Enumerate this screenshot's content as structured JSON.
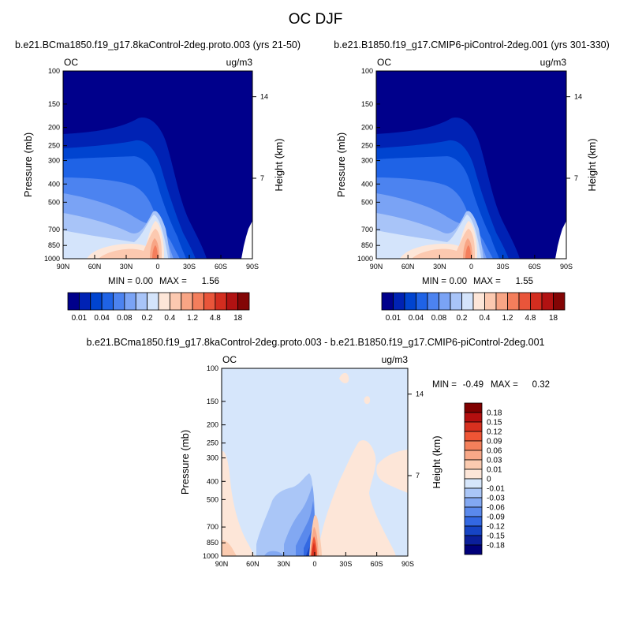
{
  "figure": {
    "title": "OC DJF"
  },
  "chart_data": [
    {
      "type": "heatmap",
      "panel": "left",
      "title": "b.e21.BCma1850.f19_g17.8kaControl-2deg.proto.003 (yrs 21-50)",
      "left_label": "OC",
      "right_label": "ug/m3",
      "xlabel": "",
      "ylabel": "Pressure (mb)",
      "ylabel_right": "Height (km)",
      "x_ticks": [
        "90N",
        "60N",
        "30N",
        "0",
        "30S",
        "60S",
        "90S"
      ],
      "y_ticks": [
        "100",
        "150",
        "200",
        "250",
        "300",
        "400",
        "500",
        "700",
        "850",
        "1000"
      ],
      "y_right_ticks": [
        "14",
        "7"
      ],
      "min_label": "MIN =",
      "min_value": "0.00",
      "max_label": "MAX =",
      "max_value": "1.56",
      "colors": [
        "#00008b",
        "#0022b4",
        "#0044d0",
        "#1f63e6",
        "#4c83f0",
        "#7aa3f5",
        "#a8c4f8",
        "#d4e4fb",
        "#fde6d8",
        "#fcc9b0",
        "#f8a585",
        "#f47e5c",
        "#e9553a",
        "#d32d1f",
        "#b11212",
        "#830505"
      ],
      "colorbar_labels": [
        "0.01",
        "0.04",
        "0.08",
        "0.2",
        "0.4",
        "1.2",
        "4.8",
        "18"
      ]
    },
    {
      "type": "heatmap",
      "panel": "right",
      "title": "b.e21.B1850.f19_g17.CMIP6-piControl-2deg.001 (yrs 301-330)",
      "left_label": "OC",
      "right_label": "ug/m3",
      "xlabel": "",
      "ylabel": "Pressure (mb)",
      "ylabel_right": "Height (km)",
      "x_ticks": [
        "90N",
        "60N",
        "30N",
        "0",
        "30S",
        "60S",
        "90S"
      ],
      "y_ticks": [
        "100",
        "150",
        "200",
        "250",
        "300",
        "400",
        "500",
        "700",
        "850",
        "1000"
      ],
      "y_right_ticks": [
        "14",
        "7"
      ],
      "min_label": "MIN =",
      "min_value": "0.00",
      "max_label": "MAX =",
      "max_value": "1.55",
      "colors": [
        "#00008b",
        "#0022b4",
        "#0044d0",
        "#1f63e6",
        "#4c83f0",
        "#7aa3f5",
        "#a8c4f8",
        "#d4e4fb",
        "#fde6d8",
        "#fcc9b0",
        "#f8a585",
        "#f47e5c",
        "#e9553a",
        "#d32d1f",
        "#b11212",
        "#830505"
      ],
      "colorbar_labels": [
        "0.01",
        "0.04",
        "0.08",
        "0.2",
        "0.4",
        "1.2",
        "4.8",
        "18"
      ]
    },
    {
      "type": "heatmap",
      "panel": "difference",
      "title": "b.e21.BCma1850.f19_g17.8kaControl-2deg.proto.003 - b.e21.B1850.f19_g17.CMIP6-piControl-2deg.001",
      "left_label": "OC",
      "right_label": "ug/m3",
      "xlabel": "",
      "ylabel": "Pressure (mb)",
      "ylabel_right": "Height (km)",
      "x_ticks": [
        "90N",
        "60N",
        "30N",
        "0",
        "30S",
        "60S",
        "90S"
      ],
      "y_ticks": [
        "100",
        "150",
        "200",
        "250",
        "300",
        "400",
        "500",
        "700",
        "850",
        "1000"
      ],
      "y_right_ticks": [
        "14",
        "7"
      ],
      "min_label": "MIN =",
      "min_value": "-0.49",
      "max_label": "MAX =",
      "max_value": "0.32",
      "colors": [
        "#800000",
        "#b40f0f",
        "#d7301f",
        "#ef5535",
        "#f4805b",
        "#f8a888",
        "#fbcbb0",
        "#fde6d8",
        "#d6e6fb",
        "#aac6f7",
        "#82a8f2",
        "#5a89ec",
        "#3368e2",
        "#1644c4",
        "#0b1f9a",
        "#00007a"
      ],
      "colorbar_labels": [
        "0.18",
        "0.15",
        "0.12",
        "0.09",
        "0.06",
        "0.03",
        "0.01",
        "0",
        "-0.01",
        "-0.03",
        "-0.06",
        "-0.09",
        "-0.12",
        "-0.15",
        "-0.18"
      ]
    }
  ]
}
